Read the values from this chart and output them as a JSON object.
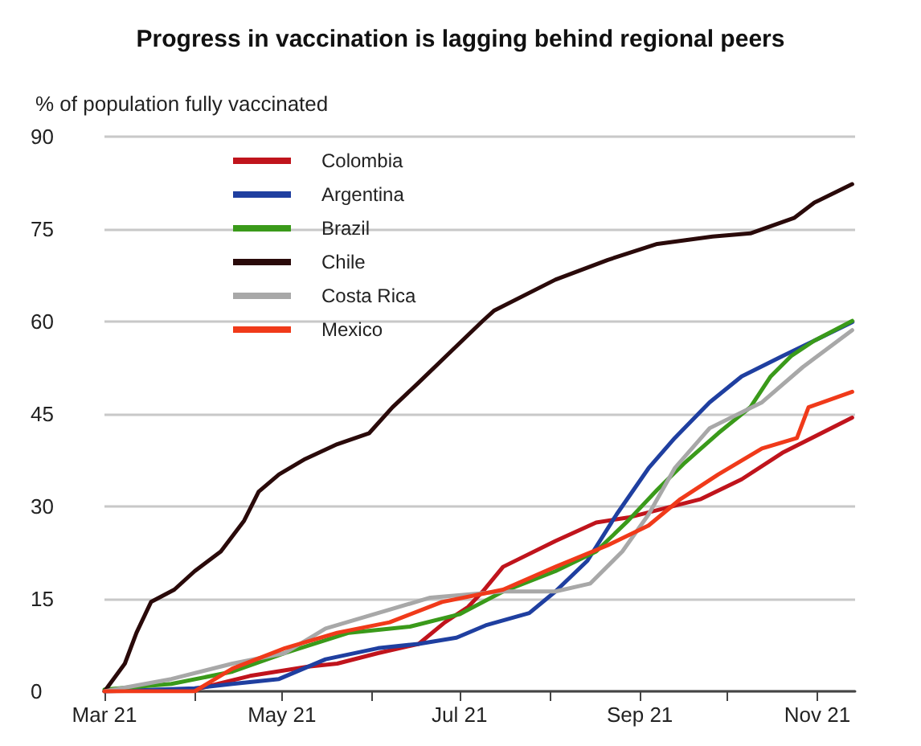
{
  "chart_data": {
    "type": "line",
    "title": "Progress in vaccination is lagging behind regional peers",
    "ylabel": "% of population fully vaccinated",
    "xlim": [
      "2021-03-01",
      "2021-11-14"
    ],
    "xticks": [
      {
        "value": "2021-03-01",
        "label": "Mar 21"
      },
      {
        "value": "2021-04-01",
        "label": null
      },
      {
        "value": "2021-05-01",
        "label": "May 21"
      },
      {
        "value": "2021-06-01",
        "label": null
      },
      {
        "value": "2021-07-01",
        "label": "Jul 21"
      },
      {
        "value": "2021-08-01",
        "label": null
      },
      {
        "value": "2021-09-01",
        "label": "Sep 21"
      },
      {
        "value": "2021-10-01",
        "label": null
      },
      {
        "value": "2021-11-01",
        "label": "Nov 21"
      }
    ],
    "ylim": [
      0,
      90
    ],
    "yticks": [
      0,
      15,
      30,
      45,
      60,
      75,
      90
    ],
    "grid": "y",
    "legend": "top left",
    "series": [
      {
        "name": "Colombia",
        "color": "#c0141c",
        "x": [
          "2021-03-01",
          "2021-04-01",
          "2021-04-20",
          "2021-05-10",
          "2021-05-20",
          "2021-06-03",
          "2021-06-17",
          "2021-06-26",
          "2021-07-04",
          "2021-07-09",
          "2021-07-16",
          "2021-08-03",
          "2021-08-17",
          "2021-08-28",
          "2021-09-07",
          "2021-09-22",
          "2021-10-06",
          "2021-10-20",
          "2021-11-13"
        ],
        "values": [
          0,
          0.3,
          2.5,
          4,
          4.5,
          6.2,
          7.7,
          11.2,
          13.7,
          16.2,
          20.2,
          24.4,
          27.4,
          28.2,
          29.4,
          31.2,
          34.4,
          38.7,
          44.4
        ]
      },
      {
        "name": "Argentina",
        "color": "#1f3fa0",
        "x": [
          "2021-03-01",
          "2021-04-01",
          "2021-04-14",
          "2021-04-30",
          "2021-05-16",
          "2021-06-03",
          "2021-06-17",
          "2021-06-30",
          "2021-07-10",
          "2021-07-25",
          "2021-08-03",
          "2021-08-14",
          "2021-08-24",
          "2021-09-04",
          "2021-09-13",
          "2021-09-25",
          "2021-10-06",
          "2021-10-20",
          "2021-10-31",
          "2021-11-13"
        ],
        "values": [
          0,
          0.5,
          1.2,
          2,
          5.2,
          7,
          7.7,
          8.7,
          10.7,
          12.7,
          16.2,
          21.2,
          28.7,
          36.2,
          41.1,
          46.9,
          51.1,
          54.4,
          56.9,
          59.9
        ]
      },
      {
        "name": "Brazil",
        "color": "#3a9a1a",
        "x": [
          "2021-03-01",
          "2021-03-24",
          "2021-04-14",
          "2021-05-02",
          "2021-05-24",
          "2021-06-14",
          "2021-07-01",
          "2021-07-16",
          "2021-08-03",
          "2021-08-17",
          "2021-08-28",
          "2021-09-07",
          "2021-09-16",
          "2021-09-28",
          "2021-10-09",
          "2021-10-16",
          "2021-10-23",
          "2021-10-31",
          "2021-11-13"
        ],
        "values": [
          0.3,
          1.2,
          3.2,
          6.2,
          9.5,
          10.5,
          12.5,
          16.2,
          19.5,
          22.7,
          27.7,
          32.7,
          36.9,
          41.9,
          46.1,
          51.1,
          54.4,
          56.9,
          60.1
        ]
      },
      {
        "name": "Chile",
        "color": "#2a0a0a",
        "x": [
          "2021-03-01",
          "2021-03-08",
          "2021-03-12",
          "2021-03-17",
          "2021-03-25",
          "2021-04-01",
          "2021-04-10",
          "2021-04-18",
          "2021-04-23",
          "2021-04-30",
          "2021-05-09",
          "2021-05-20",
          "2021-05-31",
          "2021-06-08",
          "2021-06-17",
          "2021-06-28",
          "2021-07-09",
          "2021-07-13",
          "2021-08-03",
          "2021-08-21",
          "2021-09-07",
          "2021-09-26",
          "2021-10-09",
          "2021-10-24",
          "2021-10-31",
          "2021-11-13"
        ],
        "values": [
          0,
          4.5,
          9.5,
          14.5,
          16.5,
          19.5,
          22.7,
          27.7,
          32.4,
          35.2,
          37.7,
          40.1,
          41.9,
          46.1,
          50.1,
          55.1,
          60.1,
          61.8,
          66.8,
          70,
          72.6,
          73.8,
          74.3,
          76.8,
          79.3,
          82.3
        ]
      },
      {
        "name": "Costa Rica",
        "color": "#a8a8a8",
        "x": [
          "2021-03-01",
          "2021-03-24",
          "2021-04-14",
          "2021-05-02",
          "2021-05-16",
          "2021-06-03",
          "2021-06-21",
          "2021-07-16",
          "2021-08-03",
          "2021-08-15",
          "2021-08-26",
          "2021-09-04",
          "2021-09-13",
          "2021-09-25",
          "2021-10-13",
          "2021-10-27",
          "2021-11-13"
        ],
        "values": [
          0,
          2,
          4.5,
          6.2,
          10.2,
          12.7,
          15.2,
          16.2,
          16.2,
          17.5,
          22.7,
          28.7,
          36.2,
          42.7,
          46.9,
          52.6,
          58.6
        ]
      },
      {
        "name": "Mexico",
        "color": "#f03a1a",
        "x": [
          "2021-03-01",
          "2021-04-01",
          "2021-04-14",
          "2021-05-02",
          "2021-05-20",
          "2021-06-07",
          "2021-06-25",
          "2021-07-16",
          "2021-08-03",
          "2021-08-21",
          "2021-09-04",
          "2021-09-15",
          "2021-09-28",
          "2021-10-13",
          "2021-10-25",
          "2021-10-29",
          "2021-11-13"
        ],
        "values": [
          0,
          0,
          3.7,
          7,
          9.5,
          11.2,
          14.5,
          16.5,
          20.2,
          23.7,
          26.9,
          31.2,
          35.2,
          39.4,
          41.1,
          46.1,
          48.6
        ]
      }
    ]
  }
}
